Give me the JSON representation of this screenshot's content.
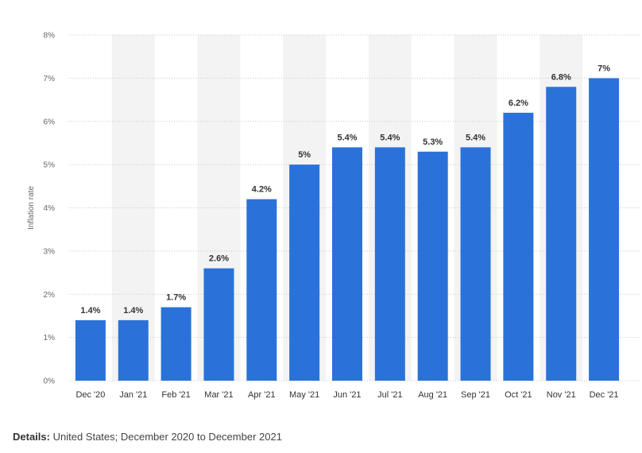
{
  "chart_data": {
    "type": "bar",
    "categories": [
      "Dec '20",
      "Jan '21",
      "Feb '21",
      "Mar '21",
      "Apr '21",
      "May '21",
      "Jun '21",
      "Jul '21",
      "Aug '21",
      "Sep '21",
      "Oct '21",
      "Nov '21",
      "Dec '21"
    ],
    "values": [
      1.4,
      1.4,
      1.7,
      2.6,
      4.2,
      5,
      5.4,
      5.4,
      5.3,
      5.4,
      6.2,
      6.8,
      7
    ],
    "value_labels": [
      "1.4%",
      "1.4%",
      "1.7%",
      "2.6%",
      "4.2%",
      "5%",
      "5.4%",
      "5.4%",
      "5.3%",
      "5.4%",
      "6.2%",
      "6.8%",
      "7%"
    ],
    "ylabel": "Inflation rate",
    "ylim": [
      0,
      8
    ],
    "yticks": [
      "0%",
      "1%",
      "2%",
      "3%",
      "4%",
      "5%",
      "6%",
      "7%",
      "8%"
    ],
    "grid": true,
    "bar_color": "#2a72d9",
    "band_color": "#f3f3f3"
  },
  "details": {
    "label": "Details:",
    "text": "United States; December 2020 to December 2021"
  }
}
